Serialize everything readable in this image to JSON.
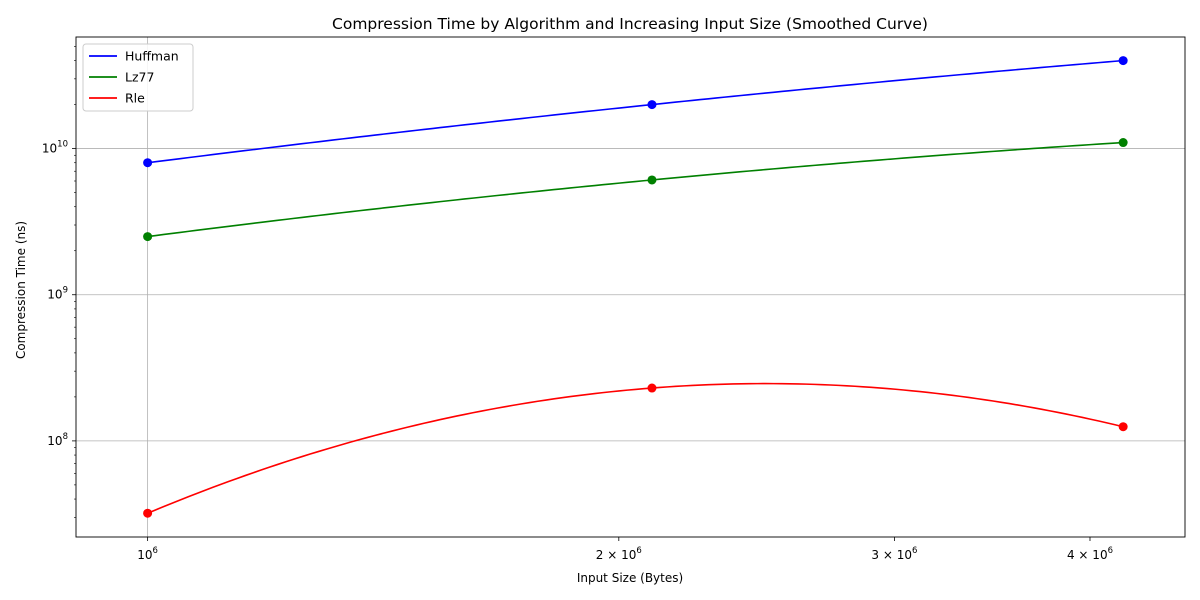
{
  "chart_data": {
    "type": "line",
    "title": "Compression Time by Algorithm and Increasing Input Size (Smoothed Curve)",
    "xlabel": "Input Size (Bytes)",
    "ylabel": "Compression Time (ns)",
    "x_scale": "log",
    "y_scale": "log",
    "xlim": [
      900000,
      4600000
    ],
    "ylim": [
      22000000,
      58000000000
    ],
    "x_ticks": [
      {
        "value": 1000000,
        "base": "10",
        "exp": "6"
      },
      {
        "value": 2000000,
        "base": "2 × 10",
        "exp": "6"
      },
      {
        "value": 3000000,
        "base": "3 × 10",
        "exp": "6"
      },
      {
        "value": 4000000,
        "base": "4 × 10",
        "exp": "6"
      }
    ],
    "y_ticks": [
      {
        "value": 100000000,
        "base": "10",
        "exp": "8"
      },
      {
        "value": 1000000000,
        "base": "10",
        "exp": "9"
      },
      {
        "value": 10000000000,
        "base": "10",
        "exp": "10"
      }
    ],
    "grid": true,
    "legend_position": "top-left",
    "x": [
      1000000,
      2100000,
      4200000
    ],
    "series": [
      {
        "name": "Huffman",
        "color": "#0000ff",
        "values": [
          8000000000,
          20000000000,
          40000000000
        ]
      },
      {
        "name": "Lz77",
        "color": "#008000",
        "values": [
          2500000000,
          6100000000,
          11000000000
        ]
      },
      {
        "name": "Rle",
        "color": "#ff0000",
        "values": [
          32000000,
          230000000,
          125000000
        ]
      }
    ]
  }
}
